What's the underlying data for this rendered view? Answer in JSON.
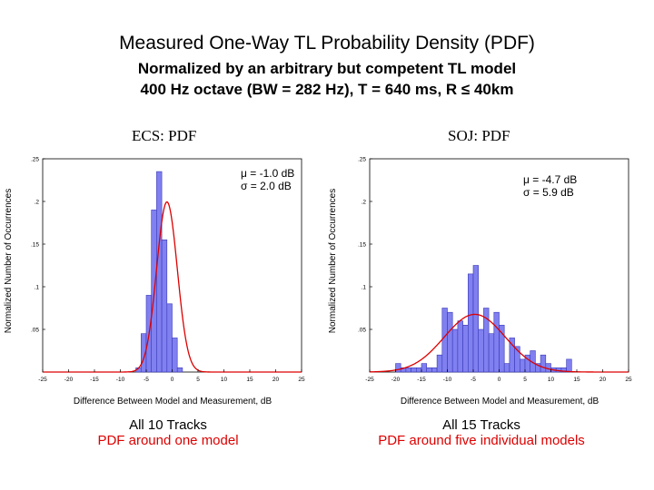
{
  "header": {
    "title": "Measured One-Way TL Probability Density (PDF)",
    "subtitle_line1": "Normalized by an arbitrary but competent TL model",
    "subtitle_line2": "400 Hz octave (BW = 282 Hz), T = 640 ms, R ≤ 40km"
  },
  "colors": {
    "bar_fill": "#8080f0",
    "bar_stroke": "#3a3ab8",
    "fit_line": "#dd0000",
    "caption_red": "#dd0000"
  },
  "chart_data": [
    {
      "type": "bar",
      "title": "ECS: PDF",
      "xlabel": "Difference Between Model and Measurement, dB",
      "ylabel": "Normalized Number of Occurrences",
      "xlim": [
        -25,
        25
      ],
      "ylim": [
        0,
        0.25
      ],
      "xticks": [
        -25,
        -20,
        -15,
        -10,
        -5,
        0,
        5,
        10,
        15,
        20,
        25
      ],
      "yticks": [
        0.05,
        0.1,
        0.15,
        0.2,
        0.25
      ],
      "bin_width": 1,
      "bin_centers": [
        -6.5,
        -5.5,
        -4.5,
        -3.5,
        -2.5,
        -1.5,
        -0.5,
        0.5,
        1.5
      ],
      "values": [
        0.005,
        0.045,
        0.09,
        0.19,
        0.235,
        0.155,
        0.08,
        0.04,
        0.005
      ],
      "fit": {
        "mu": -1.0,
        "sigma": 2.0
      },
      "stats_mu": "μ = -1.0 dB",
      "stats_sigma": "σ = 2.0 dB",
      "caption_line1": "All 10 Tracks",
      "caption_line2": "PDF around one model"
    },
    {
      "type": "bar",
      "title": "SOJ: PDF",
      "xlabel": "Difference Between Model and Measurement, dB",
      "ylabel": "Normalized Number of Occurrences",
      "xlim": [
        -25,
        25
      ],
      "ylim": [
        0,
        0.25
      ],
      "xticks": [
        -25,
        -20,
        -15,
        -10,
        -5,
        0,
        5,
        10,
        15,
        20,
        25
      ],
      "yticks": [
        0.05,
        0.1,
        0.15,
        0.2,
        0.25
      ],
      "bin_width": 1,
      "bin_centers": [
        -19.5,
        -18.5,
        -17.5,
        -16.5,
        -15.5,
        -14.5,
        -13.5,
        -12.5,
        -11.5,
        -10.5,
        -9.5,
        -8.5,
        -7.5,
        -6.5,
        -5.5,
        -4.5,
        -3.5,
        -2.5,
        -1.5,
        -0.5,
        0.5,
        1.5,
        2.5,
        3.5,
        4.5,
        5.5,
        6.5,
        7.5,
        8.5,
        9.5,
        10.5,
        11.5,
        12.5,
        13.5
      ],
      "values": [
        0.01,
        0.005,
        0.005,
        0.005,
        0.005,
        0.01,
        0.005,
        0.005,
        0.02,
        0.075,
        0.07,
        0.05,
        0.06,
        0.055,
        0.115,
        0.125,
        0.05,
        0.075,
        0.045,
        0.07,
        0.055,
        0.01,
        0.04,
        0.03,
        0.015,
        0.02,
        0.025,
        0.01,
        0.02,
        0.01,
        0.005,
        0.005,
        0.005,
        0.015
      ],
      "fit": {
        "mu": -4.7,
        "sigma": 5.9
      },
      "stats_mu": "μ = -4.7 dB",
      "stats_sigma": "σ = 5.9 dB",
      "caption_line1": "All 15 Tracks",
      "caption_line2": "PDF around five individual models"
    }
  ]
}
